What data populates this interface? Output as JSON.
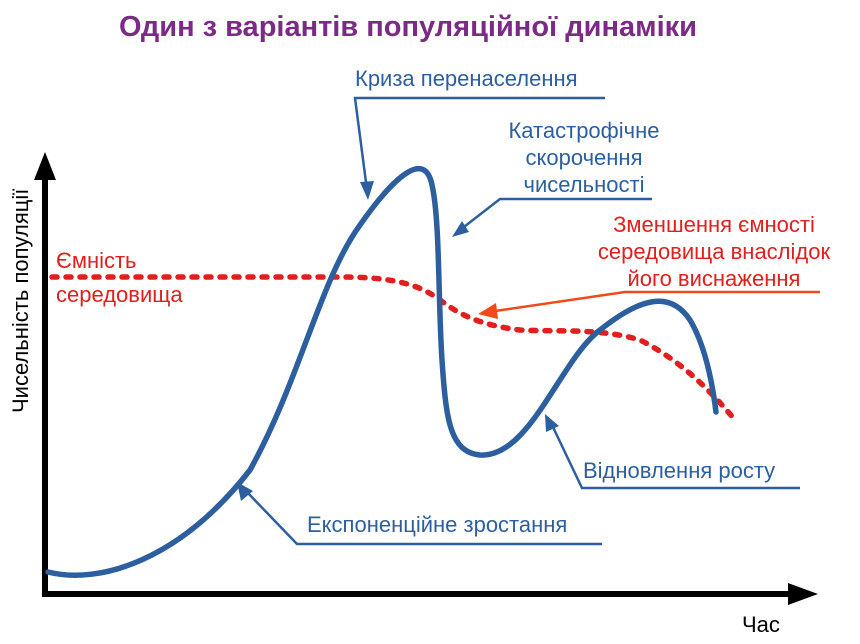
{
  "title": "Один з варіантів популяційної динаміки",
  "axes": {
    "y_label": "Чисельність популяції",
    "x_label": "Час"
  },
  "capacity_label": {
    "line1": "Ємність",
    "line2": "середовища"
  },
  "annotations": {
    "overpopulation": "Криза перенаселення",
    "catastrophic": {
      "line1": "Катастрофічне",
      "line2": "скорочення",
      "line3": "чисельності"
    },
    "capacity_decrease": {
      "line1": "Зменшення ємності",
      "line2": "середовища внаслідок",
      "line3": "його виснаження"
    },
    "recovery": "Відновлення росту",
    "exponential": "Експоненційне зростання"
  },
  "colors": {
    "title": "#7b2a86",
    "population_curve": "#2d5f9e",
    "capacity_line": "#e0201e",
    "annotation_blue": "#2d5f9e",
    "annotation_red": "#e0201e",
    "annotation_arrow_red": "#f04a1a",
    "axes": "#000000"
  }
}
